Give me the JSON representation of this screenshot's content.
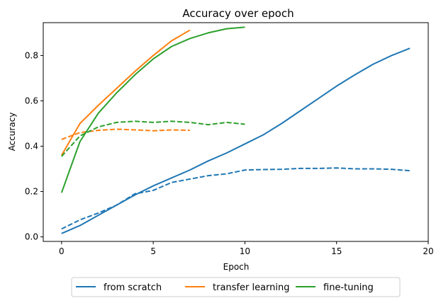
{
  "chart_data": {
    "type": "line",
    "title": "Accuracy over epoch",
    "xlabel": "Epoch",
    "ylabel": "Accuracy",
    "xlim": [
      -1,
      20
    ],
    "ylim": [
      -0.02,
      0.945
    ],
    "xticks": [
      0,
      5,
      10,
      15,
      20
    ],
    "yticks": [
      0.0,
      0.2,
      0.4,
      0.6,
      0.8
    ],
    "xtick_labels": [
      "0",
      "5",
      "10",
      "15",
      "20"
    ],
    "ytick_labels": [
      "0.0",
      "0.2",
      "0.4",
      "0.6",
      "0.8"
    ],
    "grid": false,
    "legend_position": "bottom-center",
    "series": [
      {
        "name": "from scratch",
        "color": "#1f77b4",
        "style": "solid",
        "x": [
          0,
          1,
          2,
          3,
          4,
          5,
          6,
          7,
          8,
          9,
          10,
          11,
          12,
          13,
          14,
          15,
          16,
          17,
          18,
          19
        ],
        "y": [
          0.015,
          0.05,
          0.095,
          0.14,
          0.185,
          0.225,
          0.26,
          0.295,
          0.335,
          0.37,
          0.41,
          0.45,
          0.5,
          0.555,
          0.61,
          0.665,
          0.715,
          0.762,
          0.8,
          0.832
        ]
      },
      {
        "name": "",
        "color": "#1f77b4",
        "style": "dashed",
        "x": [
          0,
          1,
          2,
          3,
          4,
          5,
          6,
          7,
          8,
          9,
          10,
          11,
          12,
          13,
          14,
          15,
          16,
          17,
          18,
          19
        ],
        "y": [
          0.035,
          0.075,
          0.105,
          0.14,
          0.19,
          0.205,
          0.24,
          0.255,
          0.27,
          0.278,
          0.295,
          0.297,
          0.298,
          0.302,
          0.302,
          0.304,
          0.3,
          0.3,
          0.298,
          0.292
        ]
      },
      {
        "name": "transfer learning",
        "color": "#ff7f0e",
        "style": "solid",
        "x": [
          0,
          1,
          2,
          3,
          4,
          5,
          6,
          7
        ],
        "y": [
          0.36,
          0.5,
          0.58,
          0.655,
          0.73,
          0.8,
          0.865,
          0.912
        ]
      },
      {
        "name": "",
        "color": "#ff7f0e",
        "style": "dashed",
        "x": [
          0,
          1,
          2,
          3,
          4,
          5,
          6,
          7
        ],
        "y": [
          0.43,
          0.46,
          0.47,
          0.475,
          0.472,
          0.468,
          0.472,
          0.47
        ]
      },
      {
        "name": "fine-tuning",
        "color": "#2ca02c",
        "style": "solid",
        "x": [
          0,
          1,
          2,
          3,
          4,
          5,
          6,
          7,
          8,
          9,
          10
        ],
        "y": [
          0.195,
          0.42,
          0.545,
          0.635,
          0.715,
          0.785,
          0.84,
          0.875,
          0.9,
          0.918,
          0.925
        ]
      },
      {
        "name": "",
        "color": "#2ca02c",
        "style": "dashed",
        "x": [
          0,
          1,
          2,
          3,
          4,
          5,
          6,
          7,
          8,
          9,
          10
        ],
        "y": [
          0.355,
          0.445,
          0.485,
          0.505,
          0.51,
          0.505,
          0.51,
          0.505,
          0.495,
          0.505,
          0.497
        ]
      }
    ],
    "legend": [
      {
        "label": "from scratch",
        "color": "#1f77b4"
      },
      {
        "label": "transfer learning",
        "color": "#ff7f0e"
      },
      {
        "label": "fine-tuning",
        "color": "#2ca02c"
      }
    ]
  }
}
